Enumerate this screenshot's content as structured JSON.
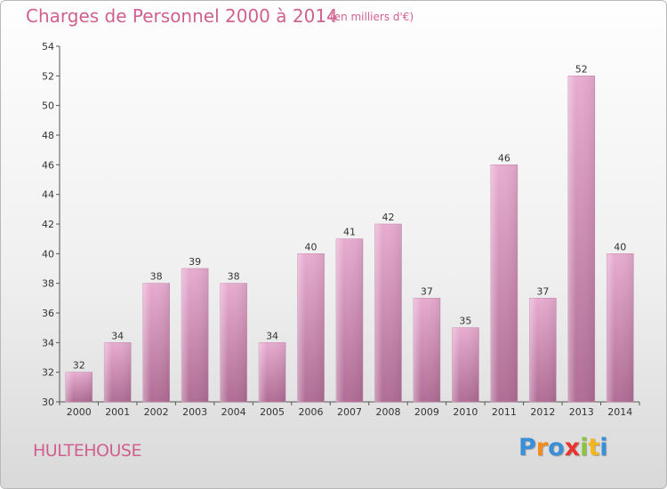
{
  "header": {
    "title": "Charges de Personnel 2000 à 2014",
    "subtitle": "(en milliers d'€)"
  },
  "footer": {
    "place": "HULTEHOUSE",
    "brand_letters": [
      "P",
      "r",
      "o",
      "x",
      "i",
      "t",
      "i"
    ],
    "brand_colors": [
      "#3b8fd6",
      "#f28c1c",
      "#3b8fd6",
      "#e8342e",
      "#8bc53f",
      "#f2b71c",
      "#3b8fd6"
    ]
  },
  "colors": {
    "bar_light": "#e8acd0",
    "bar_dark": "#b06d95",
    "title": "#d0608f"
  },
  "chart_data": {
    "type": "bar",
    "title": "Charges de Personnel 2000 à 2014",
    "subtitle": "(en milliers d'€)",
    "categories": [
      "2000",
      "2001",
      "2002",
      "2003",
      "2004",
      "2005",
      "2006",
      "2007",
      "2008",
      "2009",
      "2010",
      "2011",
      "2012",
      "2013",
      "2014"
    ],
    "values": [
      32,
      34,
      38,
      39,
      38,
      34,
      40,
      41,
      42,
      37,
      35,
      46,
      37,
      52,
      40
    ],
    "ylim": [
      30,
      54
    ],
    "yticks": [
      30,
      32,
      34,
      36,
      38,
      40,
      42,
      44,
      46,
      48,
      50,
      52,
      54
    ],
    "grid": false,
    "xlabel": "",
    "ylabel": ""
  }
}
